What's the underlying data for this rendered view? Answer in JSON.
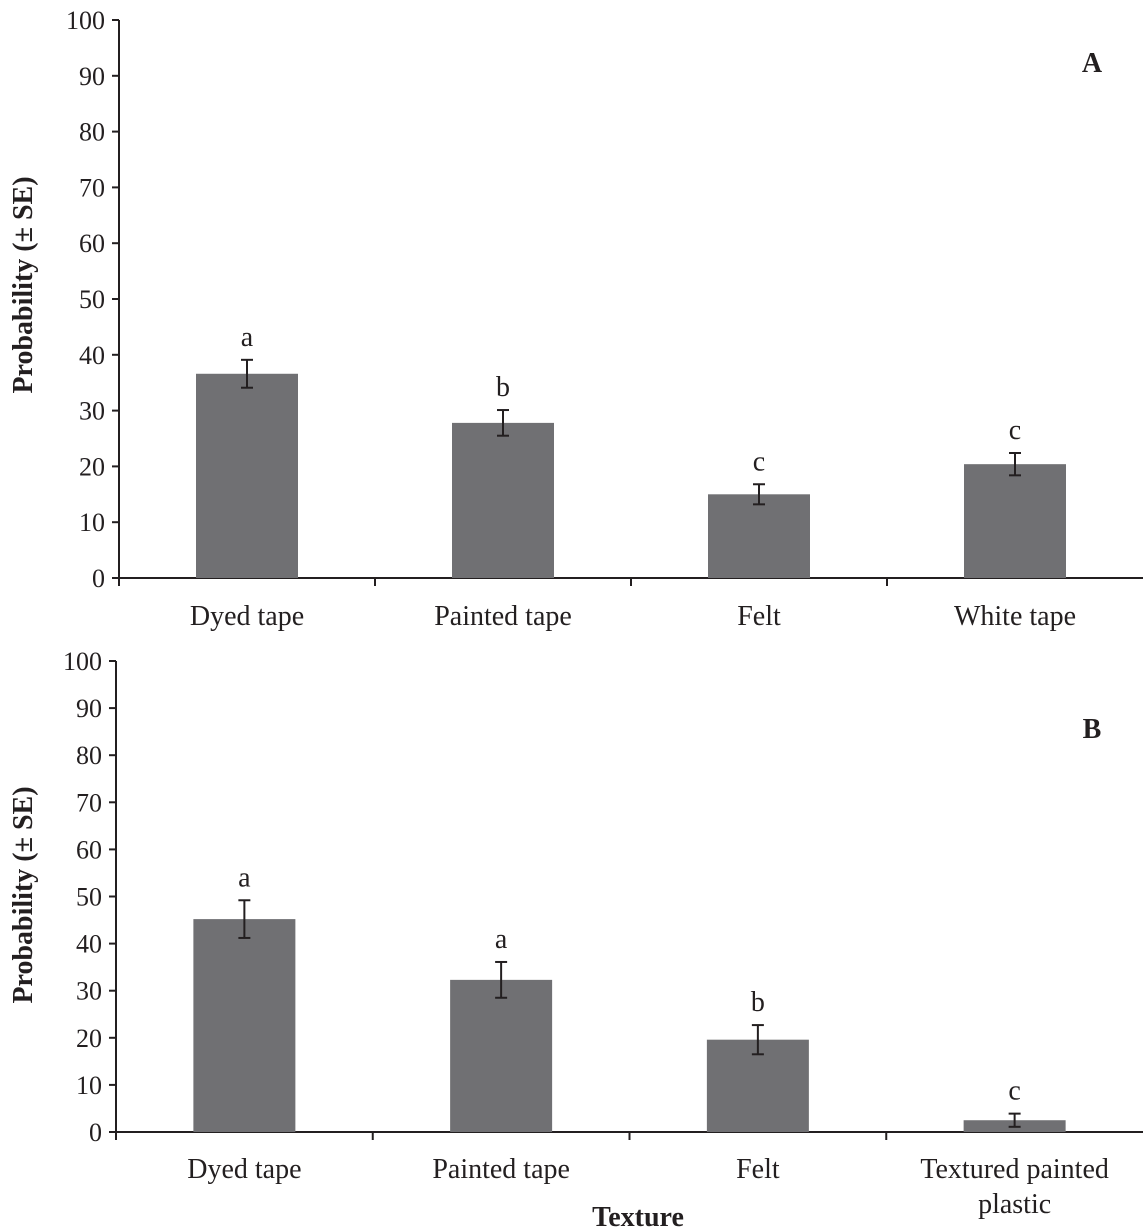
{
  "chart_data": [
    {
      "type": "bar",
      "panel_label": "A",
      "ylabel": "Probability (± SE)",
      "xlabel": "",
      "ylim": [
        0,
        100
      ],
      "yticks": [
        0,
        10,
        20,
        30,
        40,
        50,
        60,
        70,
        80,
        90,
        100
      ],
      "categories": [
        [
          "Dyed tape"
        ],
        [
          "Painted tape"
        ],
        [
          "Felt"
        ],
        [
          "White tape"
        ]
      ],
      "values": [
        36.6,
        27.8,
        15.0,
        20.4
      ],
      "errors": [
        2.5,
        2.3,
        1.8,
        2.0
      ],
      "sig_letters": [
        "a",
        "b",
        "c",
        "c"
      ],
      "bar_color": "#707073",
      "grid": false
    },
    {
      "type": "bar",
      "panel_label": "B",
      "ylabel": "Probability (± SE)",
      "xlabel": "Texture",
      "ylim": [
        0,
        100
      ],
      "yticks": [
        0,
        10,
        20,
        30,
        40,
        50,
        60,
        70,
        80,
        90,
        100
      ],
      "categories": [
        [
          "Dyed tape"
        ],
        [
          "Painted tape"
        ],
        [
          "Felt"
        ],
        [
          "Textured painted",
          "plastic"
        ]
      ],
      "values": [
        45.2,
        32.3,
        19.6,
        2.5
      ],
      "errors": [
        4.0,
        3.8,
        3.1,
        1.4
      ],
      "sig_letters": [
        "a",
        "a",
        "b",
        "c"
      ],
      "bar_color": "#707073",
      "grid": false
    }
  ]
}
